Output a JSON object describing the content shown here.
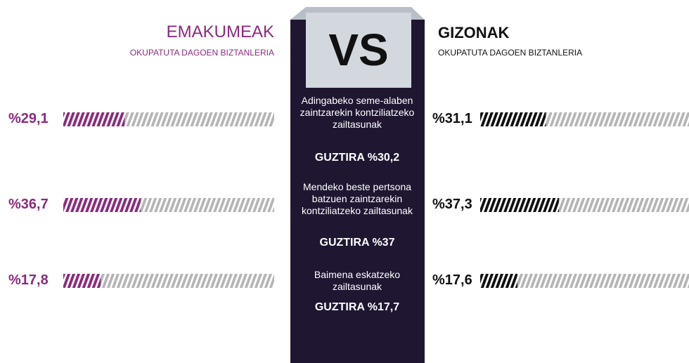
{
  "chart_data": {
    "type": "bar",
    "title": "VS",
    "categories": [
      "Adingabeko seme-alaben zaintzarekin kontziliatzeko zailtasunak",
      "Mendeko beste pertsona batzuen zaintzarekin kontziliatzeko zailtasunak",
      "Baimena eskatzeko zailtasunak"
    ],
    "series": [
      {
        "name": "EMAKUMEAK",
        "subtitle": "OKUPATUTA DAGOEN BIZTANLERIA",
        "color": "#8b2a7f",
        "values": [
          29.1,
          36.7,
          17.8
        ],
        "value_labels": [
          "%29,1",
          "%36,7",
          "%17,8"
        ]
      },
      {
        "name": "GIZONAK",
        "subtitle": "OKUPATUTA DAGOEN BIZTANLERIA",
        "color": "#111111",
        "values": [
          31.1,
          37.3,
          17.6
        ],
        "value_labels": [
          "%31,1",
          "%37,3",
          "%17,6"
        ]
      }
    ],
    "totals": {
      "values": [
        30.2,
        37,
        17.7
      ],
      "value_labels": [
        "GUZTIRA %30,2",
        "GUZTIRA %37",
        "GUZTIRA %17,7"
      ]
    },
    "xlim": [
      0,
      100
    ]
  }
}
